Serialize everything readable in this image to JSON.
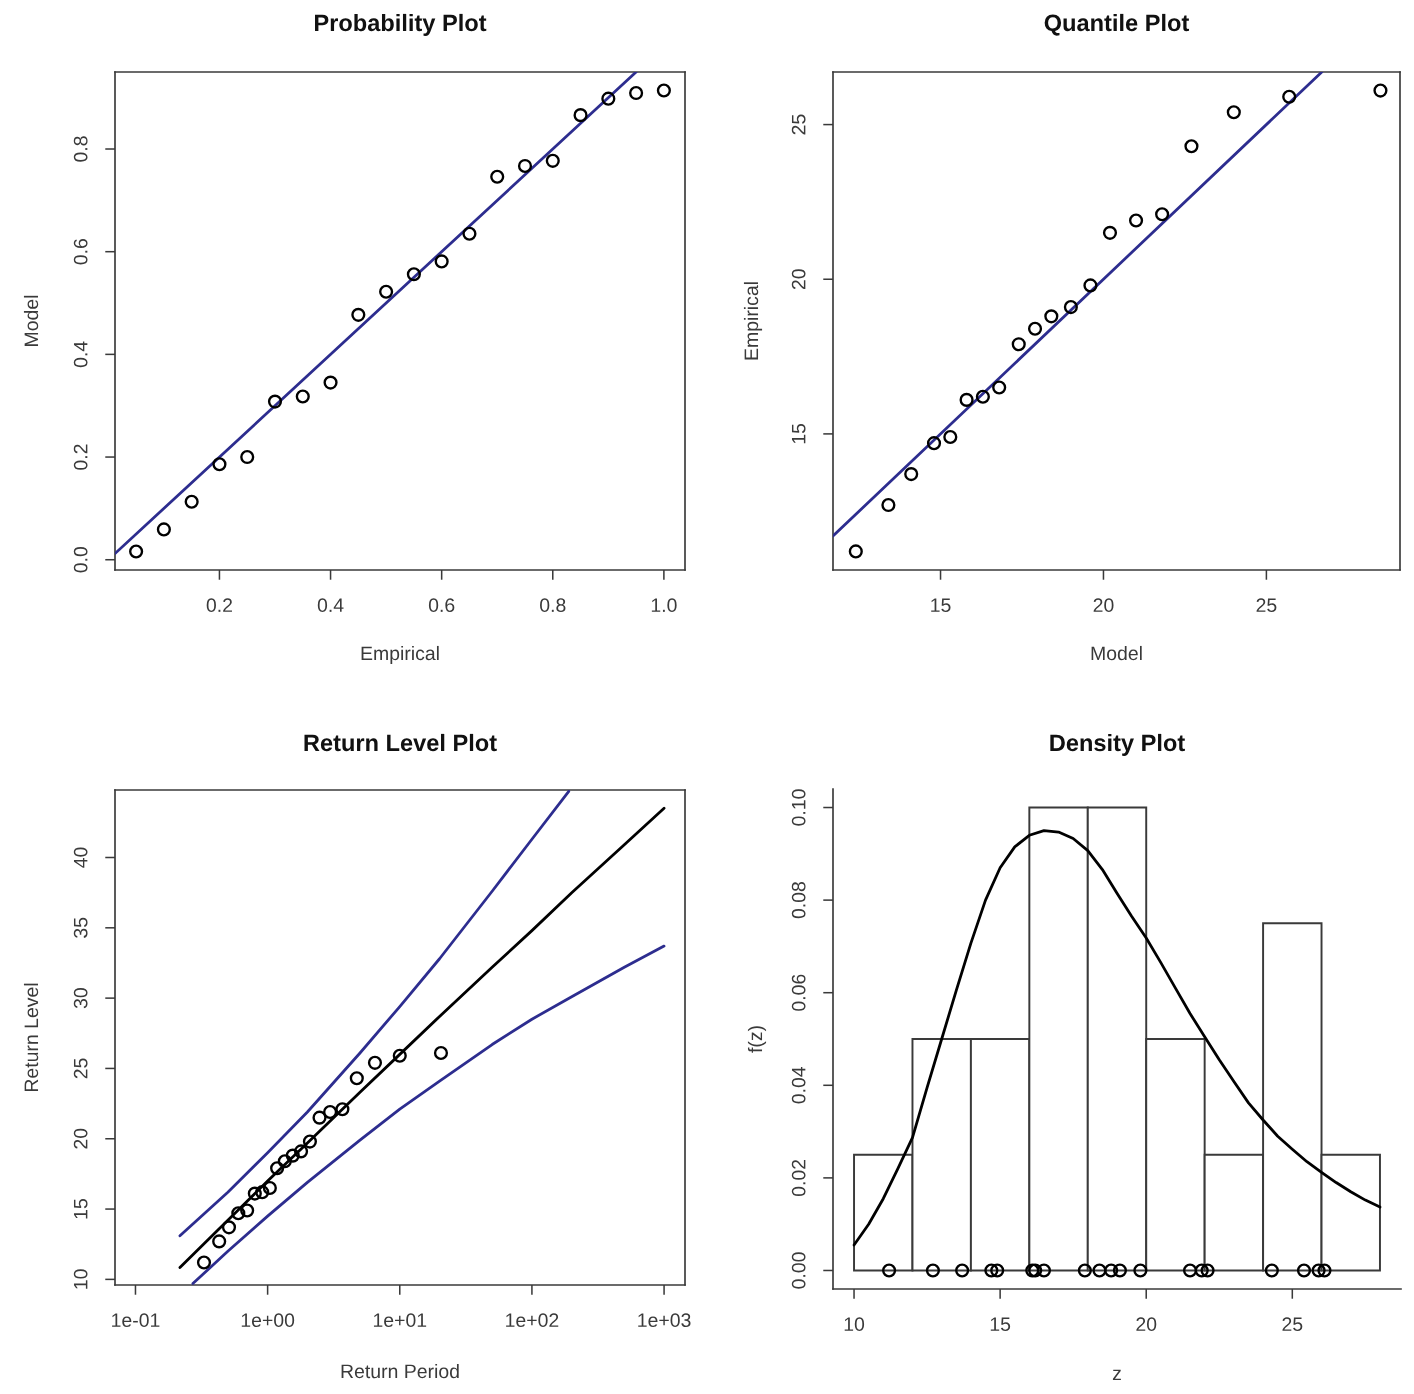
{
  "chart_data": [
    {
      "type": "scatter",
      "title": "Probability Plot",
      "xlabel": "Empirical",
      "ylabel": "Model",
      "xlim": [
        0.012,
        1.038
      ],
      "ylim": [
        -0.02,
        0.95
      ],
      "xticks": [
        0.2,
        0.4,
        0.6,
        0.8,
        {
          "value": 1,
          "label": "1.0"
        }
      ],
      "yticks": [
        {
          "value": 0,
          "label": "0.0"
        },
        0.2,
        0.4,
        0.6,
        0.8
      ],
      "series": [
        {
          "type": "scatter",
          "marker": "circle",
          "color": "#000000",
          "x": [
            0.05,
            0.1,
            0.15,
            0.2,
            0.25,
            0.3,
            0.35,
            0.4,
            0.45,
            0.5,
            0.55,
            0.6,
            0.65,
            0.7,
            0.75,
            0.8,
            0.85,
            0.9,
            0.95,
            1.0
          ],
          "values": [
            0.016,
            0.059,
            0.113,
            0.186,
            0.2,
            0.308,
            0.318,
            0.345,
            0.477,
            0.522,
            0.556,
            0.581,
            0.635,
            0.746,
            0.767,
            0.777,
            0.866,
            0.898,
            0.909,
            0.914
          ]
        },
        {
          "type": "line",
          "color": "#2d2d8f",
          "x": [
            0.012,
            0.95
          ],
          "values": [
            0.012,
            0.95
          ]
        }
      ]
    },
    {
      "type": "scatter",
      "title": "Quantile Plot",
      "xlabel": "Model",
      "ylabel": "Empirical",
      "xlim": [
        11.7,
        29.1
      ],
      "ylim": [
        10.6,
        26.7
      ],
      "xticks": [
        15,
        20,
        25
      ],
      "yticks": [
        15,
        20,
        25
      ],
      "series": [
        {
          "type": "scatter",
          "marker": "circle",
          "color": "#000000",
          "x": [
            12.4,
            13.4,
            14.1,
            14.8,
            15.3,
            15.8,
            16.3,
            16.8,
            17.4,
            17.9,
            18.4,
            19.0,
            19.6,
            20.2,
            21.0,
            21.8,
            22.7,
            24.0,
            25.7,
            28.5
          ],
          "values": [
            11.2,
            12.7,
            13.7,
            14.7,
            14.9,
            16.1,
            16.2,
            16.5,
            17.9,
            18.4,
            18.8,
            19.1,
            19.8,
            21.5,
            21.9,
            22.1,
            24.3,
            25.4,
            25.9,
            26.1
          ]
        },
        {
          "type": "line",
          "color": "#2d2d8f",
          "x": [
            11.7,
            26.7
          ],
          "values": [
            11.7,
            26.7
          ]
        }
      ]
    },
    {
      "type": "line",
      "title": "Return Level Plot",
      "xlabel": "Return Period",
      "ylabel": "Return Level",
      "log": "x",
      "xlim": [
        0.07,
        1440
      ],
      "ylim": [
        9.6,
        44.8
      ],
      "xticks": [
        {
          "value": 0.1,
          "label": "1e-01"
        },
        {
          "value": 1,
          "label": "1e+00"
        },
        {
          "value": 10,
          "label": "1e+01"
        },
        {
          "value": 100,
          "label": "1e+02"
        },
        {
          "value": 1000,
          "label": "1e+03"
        }
      ],
      "yticks": [
        10,
        15,
        20,
        25,
        30,
        35,
        40
      ],
      "series": [
        {
          "type": "line",
          "color": "#000000",
          "x": [
            0.217,
            0.5,
            1,
            2,
            5,
            10,
            20,
            50,
            100,
            200,
            500,
            1000
          ],
          "values": [
            10.85,
            14.2,
            17.0,
            19.7,
            23.3,
            26.0,
            28.7,
            32.2,
            34.8,
            37.5,
            40.9,
            43.5
          ]
        },
        {
          "type": "line",
          "color": "#2d2d8f",
          "x": [
            0.217,
            0.5,
            1,
            2,
            5,
            10,
            20,
            50,
            100,
            190
          ],
          "values": [
            13.1,
            16.2,
            19.0,
            21.9,
            26.1,
            29.4,
            32.8,
            37.6,
            41.3,
            44.7
          ]
        },
        {
          "type": "line",
          "color": "#2d2d8f",
          "x": [
            0.272,
            0.5,
            1,
            2,
            5,
            10,
            20,
            50,
            100,
            200,
            500,
            1000
          ],
          "values": [
            9.7,
            12.0,
            14.5,
            16.9,
            19.9,
            22.1,
            24.1,
            26.7,
            28.5,
            30.1,
            32.2,
            33.7
          ]
        },
        {
          "type": "scatter",
          "marker": "circle",
          "color": "#000000",
          "x": [
            0.33,
            0.43,
            0.51,
            0.6,
            0.7,
            0.8,
            0.91,
            1.04,
            1.18,
            1.35,
            1.55,
            1.79,
            2.09,
            2.47,
            2.97,
            3.68,
            4.73,
            6.49,
            10.0,
            20.5
          ],
          "values": [
            11.2,
            12.7,
            13.7,
            14.7,
            14.9,
            16.1,
            16.2,
            16.5,
            17.9,
            18.4,
            18.8,
            19.1,
            19.8,
            21.5,
            21.9,
            22.1,
            24.3,
            25.4,
            25.9,
            26.1
          ]
        }
      ]
    },
    {
      "type": "histogram",
      "title": "Density Plot",
      "xlabel": "z",
      "ylabel": "f(z)",
      "xlim": [
        9.28,
        28.72
      ],
      "ylim": [
        -0.004,
        0.104
      ],
      "xticks": [
        10,
        15,
        20,
        25
      ],
      "yticks": [
        {
          "value": 0,
          "label": "0.00"
        },
        {
          "value": 0.02,
          "label": "0.02"
        },
        {
          "value": 0.04,
          "label": "0.04"
        },
        {
          "value": 0.06,
          "label": "0.06"
        },
        {
          "value": 0.08,
          "label": "0.08"
        },
        {
          "value": 0.1,
          "label": "0.10"
        }
      ],
      "series": [
        {
          "type": "histogram",
          "color": "#ffffff",
          "bins": [
            10,
            12,
            14,
            16,
            18,
            20,
            22,
            24,
            26,
            28
          ],
          "values": [
            0.025,
            0.05,
            0.05,
            0.1,
            0.1,
            0.05,
            0.025,
            0.075,
            0.025
          ]
        },
        {
          "type": "line",
          "color": "#000000",
          "x": [
            10.0,
            10.5,
            11.0,
            11.5,
            12.0,
            12.5,
            13.0,
            13.5,
            14.0,
            14.5,
            15.0,
            15.5,
            16.0,
            16.5,
            17.0,
            17.5,
            18.0,
            18.5,
            19.0,
            19.5,
            20.0,
            20.5,
            21.0,
            21.5,
            22.0,
            22.5,
            23.0,
            23.5,
            24.0,
            24.5,
            25.0,
            25.5,
            26.0,
            26.5,
            27.0,
            27.5,
            28.0
          ],
          "values": [
            0.0055,
            0.01,
            0.0155,
            0.022,
            0.0287,
            0.0395,
            0.05,
            0.0605,
            0.0707,
            0.08,
            0.087,
            0.0915,
            0.094,
            0.095,
            0.0947,
            0.0933,
            0.0907,
            0.0866,
            0.0815,
            0.0765,
            0.0718,
            0.0665,
            0.061,
            0.0555,
            0.0505,
            0.0455,
            0.0408,
            0.0362,
            0.0325,
            0.029,
            0.0262,
            0.0235,
            0.0212,
            0.019,
            0.017,
            0.0152,
            0.0137
          ]
        },
        {
          "type": "scatter",
          "marker": "circle",
          "color": "#000000",
          "x": [
            11.2,
            12.7,
            13.7,
            14.7,
            14.9,
            16.1,
            16.2,
            16.5,
            17.9,
            18.4,
            18.8,
            19.1,
            19.8,
            21.5,
            21.9,
            22.1,
            24.3,
            25.4,
            25.9,
            26.1
          ],
          "values": [
            0,
            0,
            0,
            0,
            0,
            0,
            0,
            0,
            0,
            0,
            0,
            0,
            0,
            0,
            0,
            0,
            0,
            0,
            0,
            0
          ]
        }
      ]
    }
  ]
}
